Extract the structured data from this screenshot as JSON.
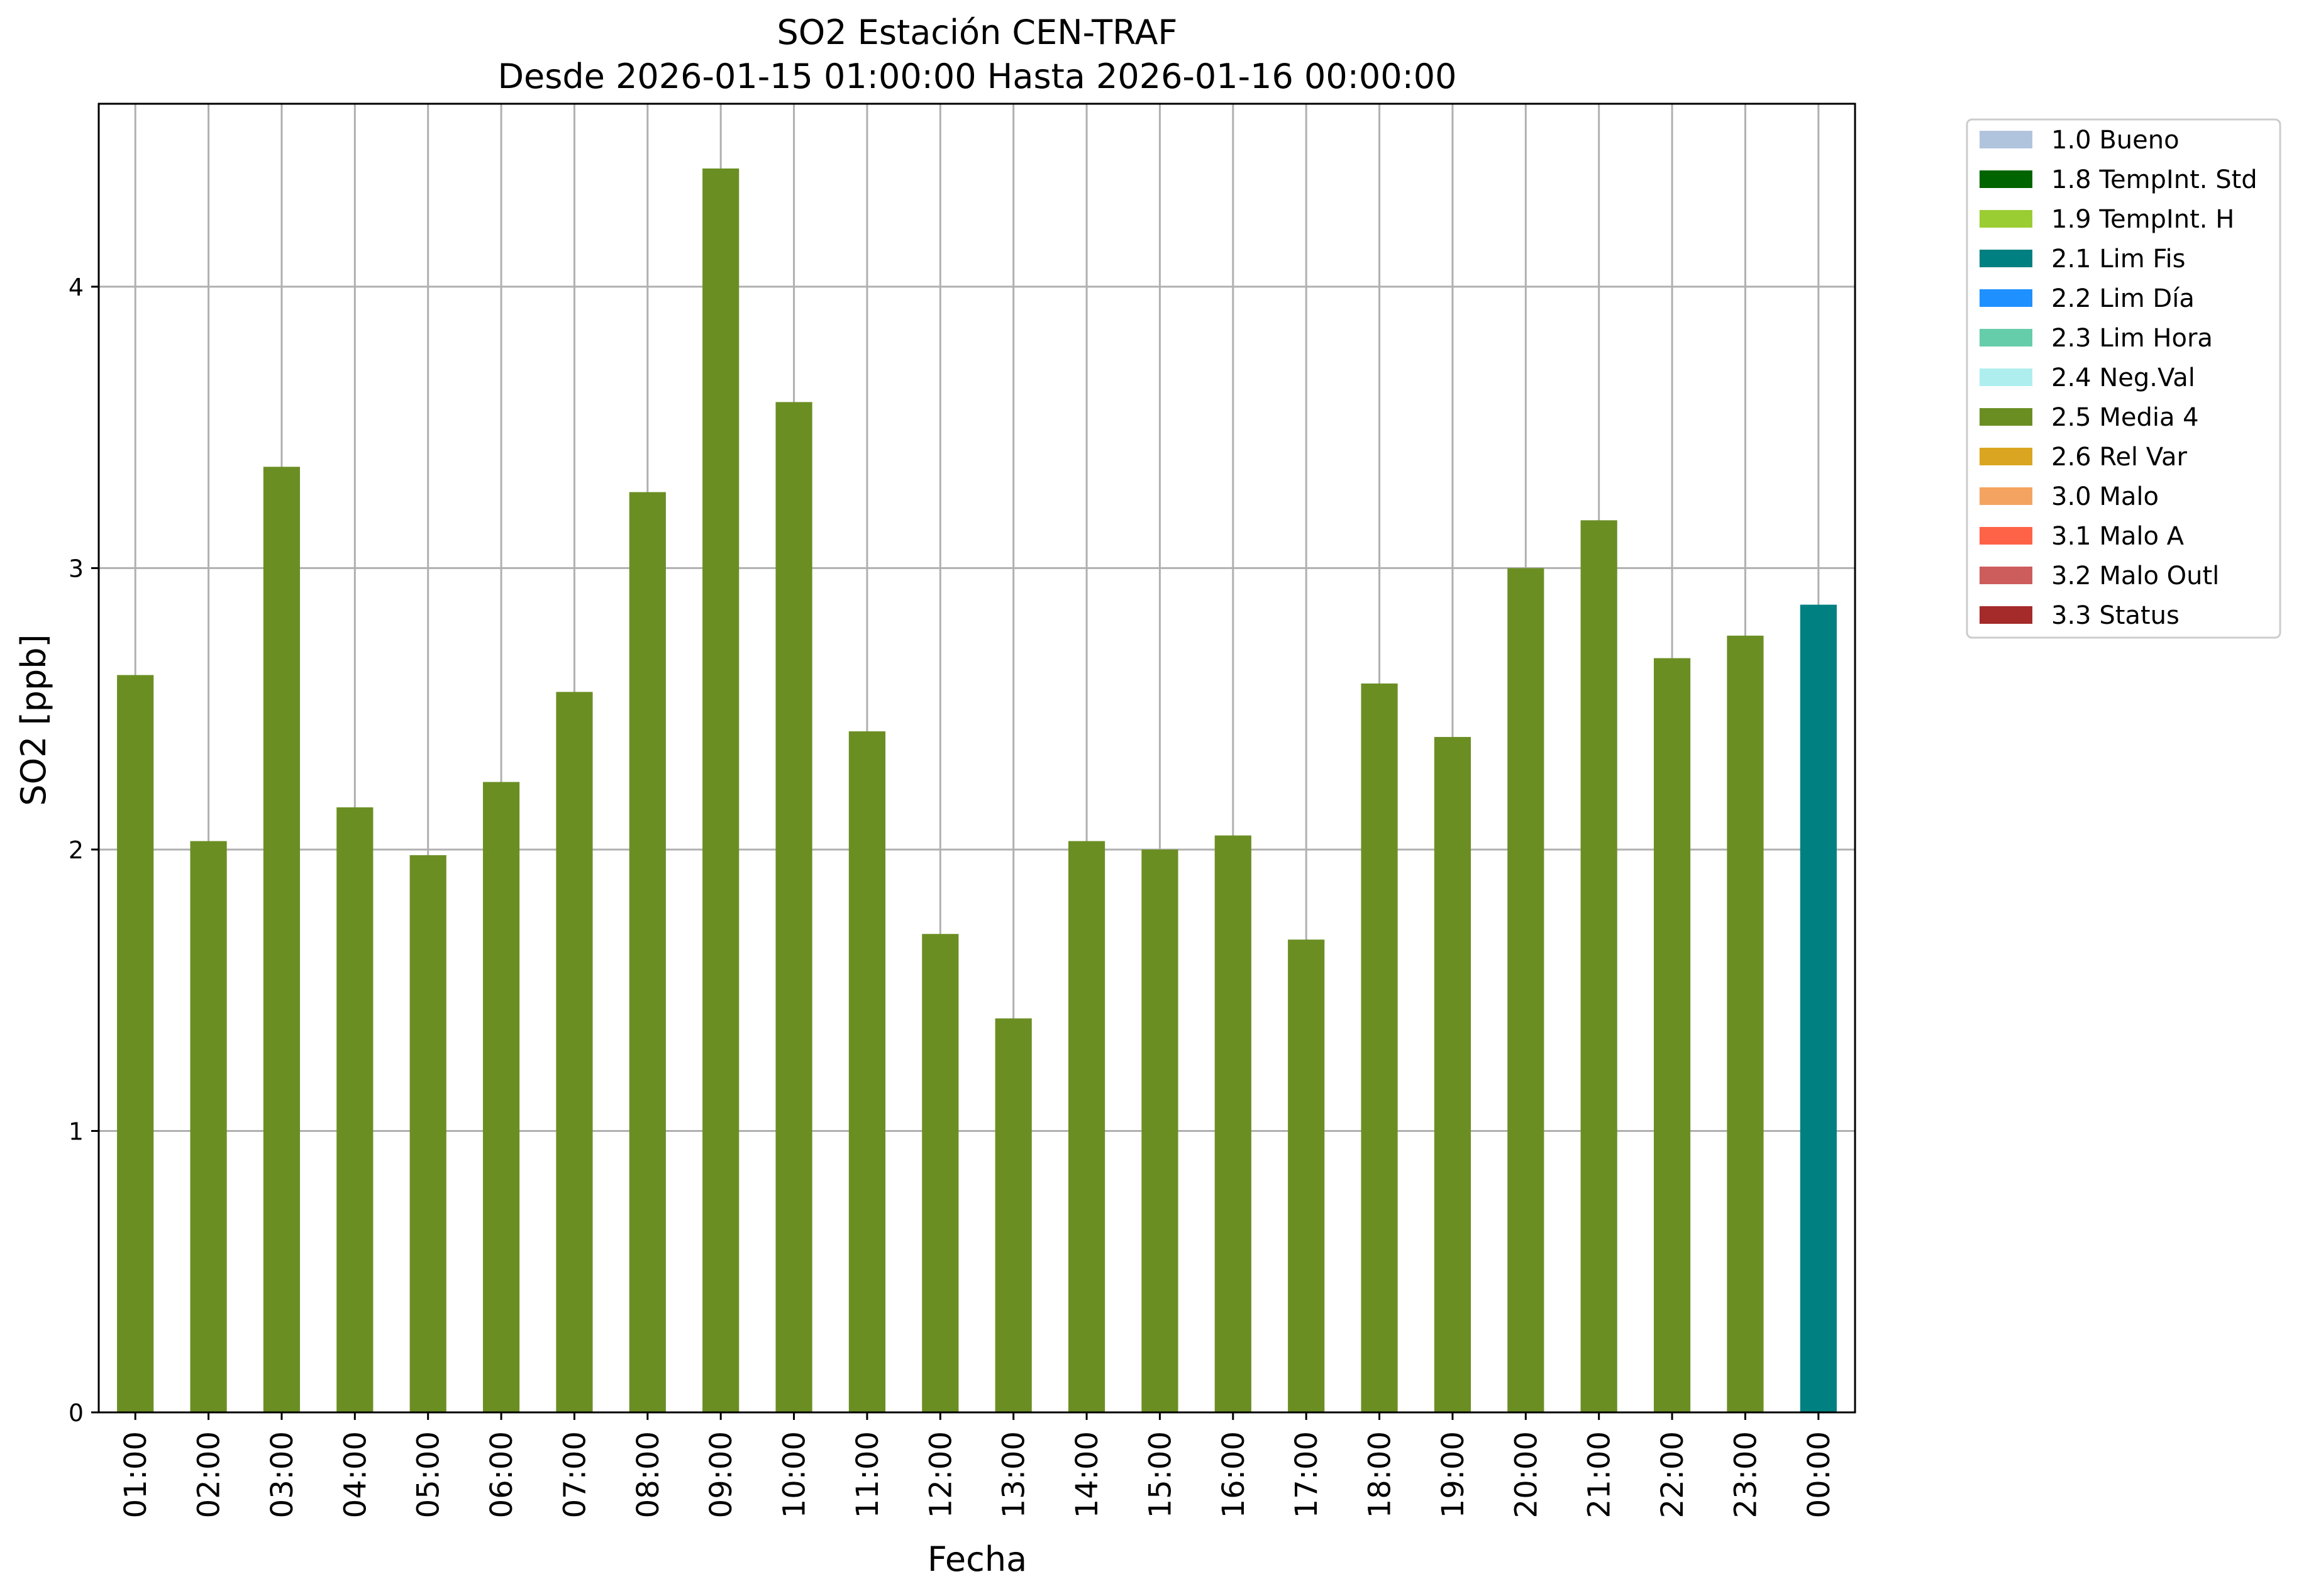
{
  "chart_data": {
    "type": "bar",
    "title_line1": "SO2 Estación CEN-TRAF",
    "title_line2": "Desde 2026-01-15 01:00:00 Hasta 2026-01-16 00:00:00",
    "xlabel": "Fecha",
    "ylabel": "SO2 [ppb]",
    "ylim": [
      0,
      4.65
    ],
    "yticks": [
      0,
      1,
      2,
      3,
      4
    ],
    "grid": true,
    "legend_position": "outside-top-right",
    "categories": [
      "01:00",
      "02:00",
      "03:00",
      "04:00",
      "05:00",
      "06:00",
      "07:00",
      "08:00",
      "09:00",
      "10:00",
      "11:00",
      "12:00",
      "13:00",
      "14:00",
      "15:00",
      "16:00",
      "17:00",
      "18:00",
      "19:00",
      "20:00",
      "21:00",
      "22:00",
      "23:00",
      "00:00"
    ],
    "values": [
      2.62,
      2.03,
      3.36,
      2.15,
      1.98,
      2.24,
      2.56,
      3.27,
      4.42,
      3.59,
      2.42,
      1.7,
      1.4,
      2.03,
      2.0,
      2.05,
      1.68,
      2.59,
      2.4,
      3.0,
      3.17,
      2.68,
      2.76,
      2.87
    ],
    "flags": [
      "2.5",
      "2.5",
      "2.5",
      "2.5",
      "2.5",
      "2.5",
      "2.5",
      "2.5",
      "2.5",
      "2.5",
      "2.5",
      "2.5",
      "2.5",
      "2.5",
      "2.5",
      "2.5",
      "2.5",
      "2.5",
      "2.5",
      "2.5",
      "2.5",
      "2.5",
      "2.5",
      "2.1"
    ],
    "legend": [
      {
        "code": "1.0",
        "label": "1.0 Bueno",
        "color": "#b0c4de"
      },
      {
        "code": "1.8",
        "label": "1.8 TempInt. Std",
        "color": "#006400"
      },
      {
        "code": "1.9",
        "label": "1.9 TempInt. H",
        "color": "#9acd32"
      },
      {
        "code": "2.1",
        "label": "2.1 Lim Fis",
        "color": "#008080"
      },
      {
        "code": "2.2",
        "label": "2.2 Lim Día",
        "color": "#1e90ff"
      },
      {
        "code": "2.3",
        "label": "2.3 Lim Hora",
        "color": "#66cdaa"
      },
      {
        "code": "2.4",
        "label": "2.4 Neg.Val",
        "color": "#afeeee"
      },
      {
        "code": "2.5",
        "label": "2.5 Media 4",
        "color": "#6b8e23"
      },
      {
        "code": "2.6",
        "label": "2.6 Rel Var",
        "color": "#daa520"
      },
      {
        "code": "3.0",
        "label": "3.0 Malo",
        "color": "#f4a460"
      },
      {
        "code": "3.1",
        "label": "3.1 Malo A",
        "color": "#ff6347"
      },
      {
        "code": "3.2",
        "label": "3.2 Malo Outl",
        "color": "#cd5c5c"
      },
      {
        "code": "3.3",
        "label": "3.3 Status",
        "color": "#a52a2a"
      }
    ]
  }
}
